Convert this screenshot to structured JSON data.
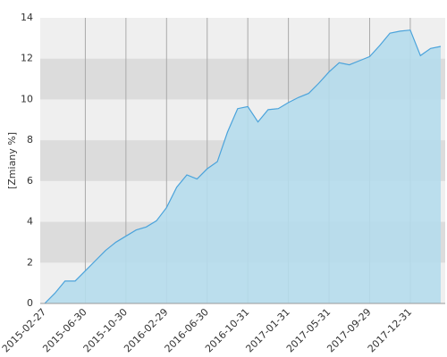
{
  "chart_data": {
    "type": "area",
    "y_label": "[Zmiany %]",
    "categories": [
      "2015-02-27",
      null,
      null,
      null,
      "2015-06-30",
      null,
      null,
      null,
      "2015-10-30",
      null,
      null,
      null,
      "2016-02-29",
      null,
      null,
      null,
      "2016-06-30",
      null,
      null,
      null,
      "2016-10-31",
      null,
      null,
      null,
      "2017-01-31",
      null,
      null,
      null,
      "2017-05-31",
      null,
      null,
      null,
      "2017-09-29",
      null,
      null,
      null,
      "2017-12-31",
      null,
      null,
      null
    ],
    "values": [
      0,
      0.5,
      1.1,
      1.1,
      1.6,
      2.1,
      2.6,
      3.0,
      3.3,
      3.6,
      3.75,
      4.05,
      4.7,
      5.7,
      6.3,
      6.1,
      6.6,
      6.95,
      8.4,
      9.55,
      9.65,
      8.9,
      9.5,
      9.55,
      9.85,
      10.1,
      10.3,
      10.8,
      11.35,
      11.8,
      11.7,
      11.9,
      12.1,
      12.65,
      13.25,
      13.35,
      13.4,
      12.15,
      12.5,
      12.6
    ],
    "color": "#4ba3db",
    "fill": "#b5dcec",
    "ylim": [
      0,
      14
    ],
    "yticks": [
      0,
      2,
      4,
      6,
      8,
      10,
      12,
      14
    ],
    "grid": true
  }
}
